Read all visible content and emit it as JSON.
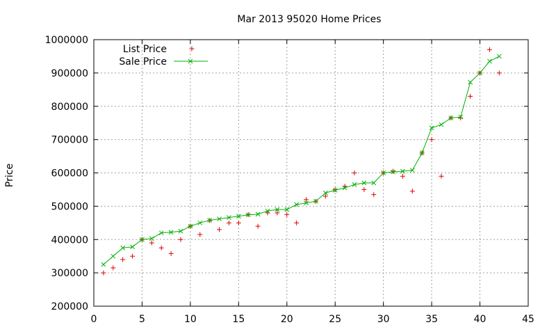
{
  "chart_data": {
    "type": "scatter",
    "title": "Mar 2013 95020 Home Prices",
    "xlabel": "",
    "ylabel": "Price",
    "xlim": [
      0,
      45
    ],
    "ylim": [
      200000,
      1000000
    ],
    "x_ticks": [
      0,
      5,
      10,
      15,
      20,
      25,
      30,
      35,
      40,
      45
    ],
    "y_ticks": [
      200000,
      300000,
      400000,
      500000,
      600000,
      700000,
      800000,
      900000,
      1000000
    ],
    "grid": true,
    "legend_position": "top-left",
    "series": [
      {
        "name": "List Price",
        "style": "points-plus",
        "color": "#e00000",
        "x": [
          1,
          2,
          3,
          4,
          5,
          6,
          7,
          8,
          9,
          10,
          11,
          12,
          13,
          14,
          15,
          16,
          17,
          18,
          19,
          20,
          21,
          22,
          23,
          24,
          25,
          26,
          27,
          28,
          29,
          30,
          31,
          32,
          33,
          34,
          35,
          36,
          37,
          38,
          39,
          40,
          41,
          42
        ],
        "y": [
          300000,
          315000,
          340000,
          350000,
          400000,
          390000,
          375000,
          358000,
          400000,
          440000,
          415000,
          457000,
          430000,
          450000,
          450000,
          475000,
          440000,
          480000,
          480000,
          475000,
          450000,
          520000,
          515000,
          530000,
          550000,
          560000,
          600000,
          550000,
          535000,
          600000,
          605000,
          590000,
          545000,
          660000,
          700000,
          590000,
          765000,
          765000,
          830000,
          900000,
          970000,
          900000
        ]
      },
      {
        "name": "Sale Price",
        "style": "linespoints-x",
        "color": "#00b000",
        "x": [
          1,
          2,
          3,
          4,
          5,
          6,
          7,
          8,
          9,
          10,
          11,
          12,
          13,
          14,
          15,
          16,
          17,
          18,
          19,
          20,
          21,
          22,
          23,
          24,
          25,
          26,
          27,
          28,
          29,
          30,
          31,
          32,
          33,
          34,
          35,
          36,
          37,
          38,
          39,
          40,
          41,
          42
        ],
        "y": [
          325000,
          350000,
          375000,
          378000,
          400000,
          403000,
          420000,
          422000,
          425000,
          440000,
          450000,
          458000,
          462000,
          466000,
          470000,
          474000,
          476000,
          486000,
          490000,
          490000,
          505000,
          510000,
          515000,
          540000,
          548000,
          555000,
          565000,
          570000,
          570000,
          600000,
          603000,
          605000,
          608000,
          660000,
          735000,
          745000,
          765000,
          768000,
          872000,
          900000,
          935000,
          950000
        ]
      }
    ]
  }
}
